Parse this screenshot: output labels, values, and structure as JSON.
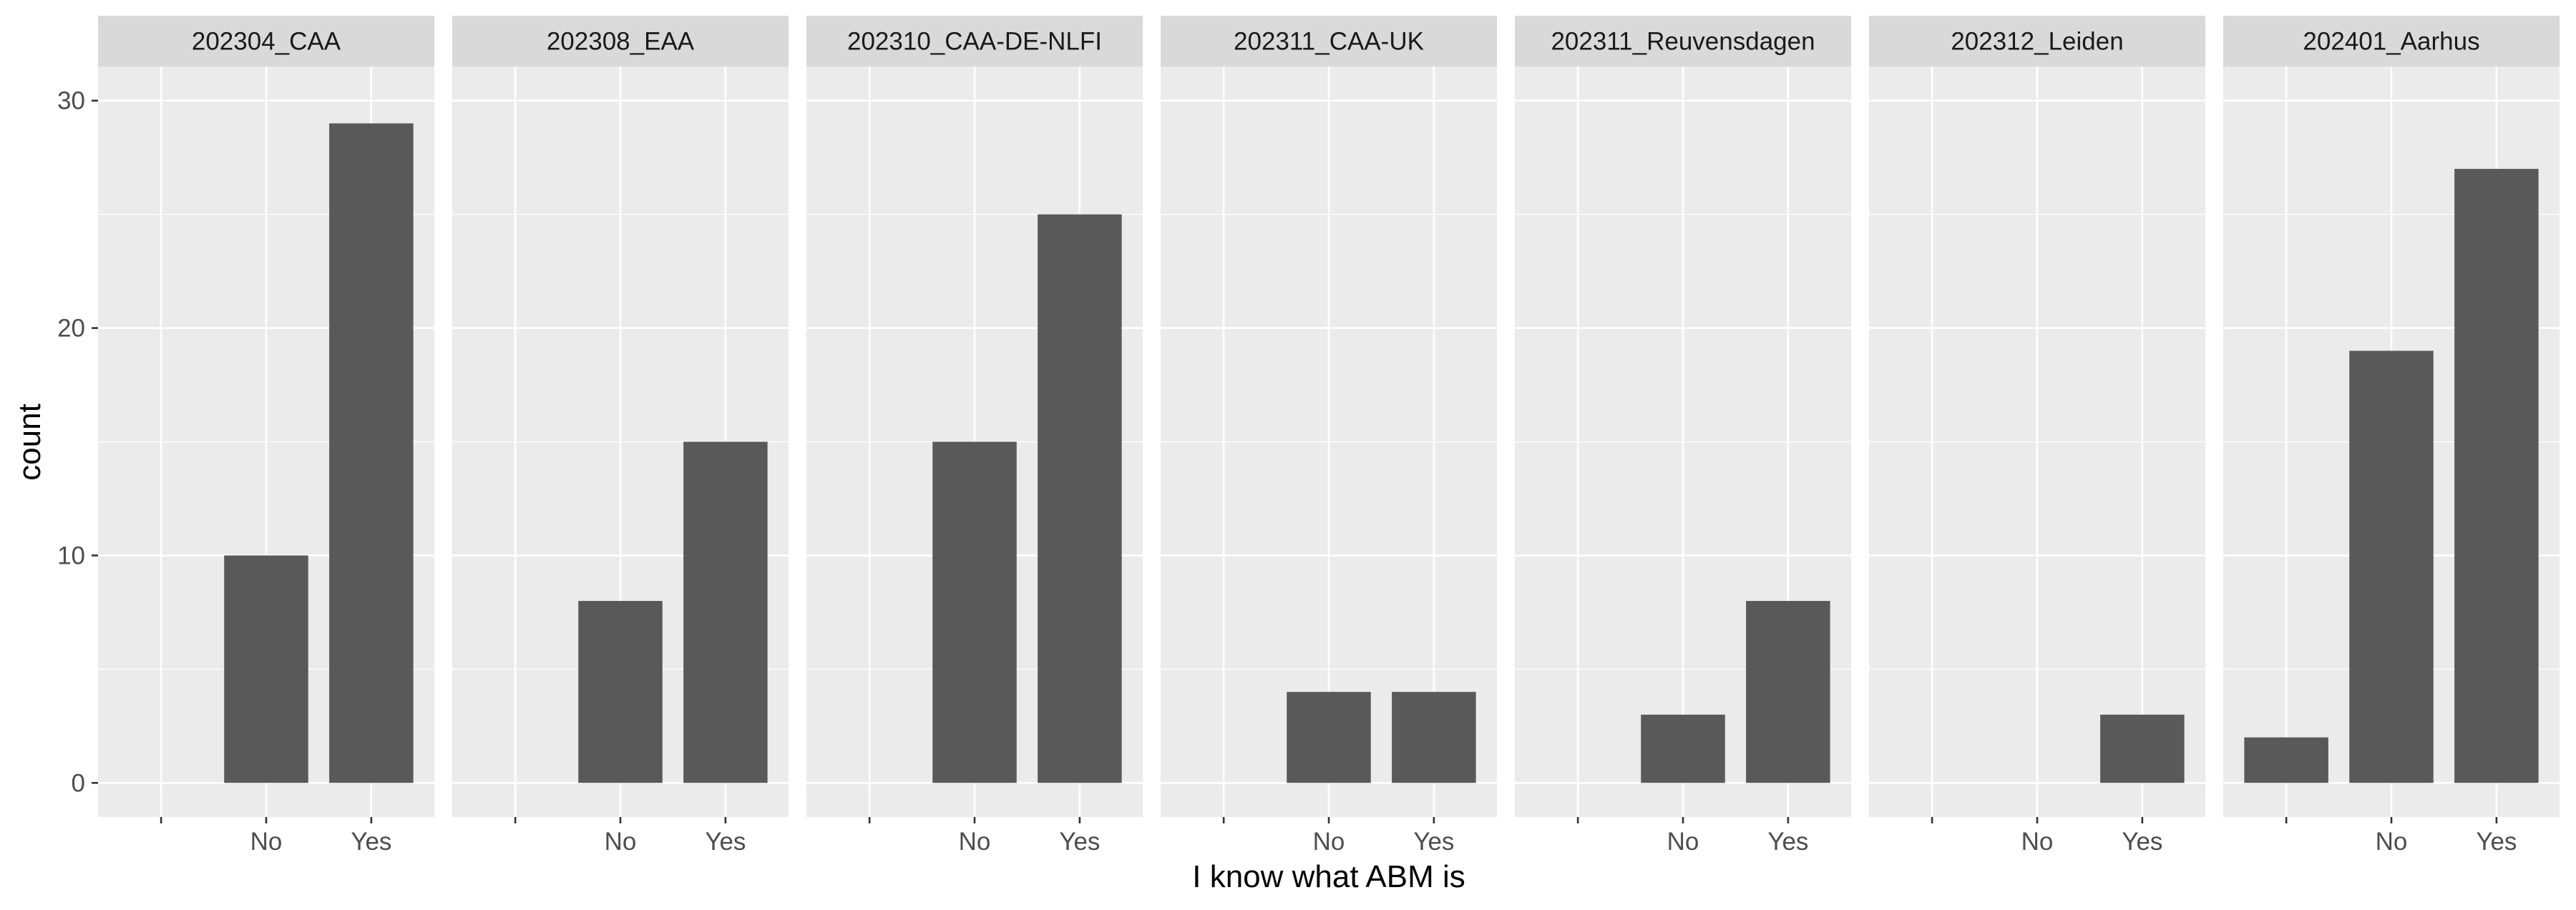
{
  "chart_data": {
    "type": "bar",
    "xlabel": "I know what ABM is",
    "ylabel": "count",
    "categories": [
      "",
      "No",
      "Yes"
    ],
    "ylim": [
      -1.5,
      31.5
    ],
    "yticks": [
      0,
      10,
      20,
      30
    ],
    "grid": true,
    "facets": [
      {
        "label": "202304_CAA",
        "values": [
          0,
          10,
          29
        ]
      },
      {
        "label": "202308_EAA",
        "values": [
          0,
          8,
          15
        ]
      },
      {
        "label": "202310_CAA-DE-NLFI",
        "values": [
          0,
          15,
          25
        ]
      },
      {
        "label": "202311_CAA-UK",
        "values": [
          0,
          4,
          4
        ]
      },
      {
        "label": "202311_Reuvensdagen",
        "values": [
          0,
          3,
          8
        ]
      },
      {
        "label": "202312_Leiden",
        "values": [
          0,
          0,
          3
        ]
      },
      {
        "label": "202401_Aarhus",
        "values": [
          2,
          19,
          27
        ]
      }
    ]
  }
}
